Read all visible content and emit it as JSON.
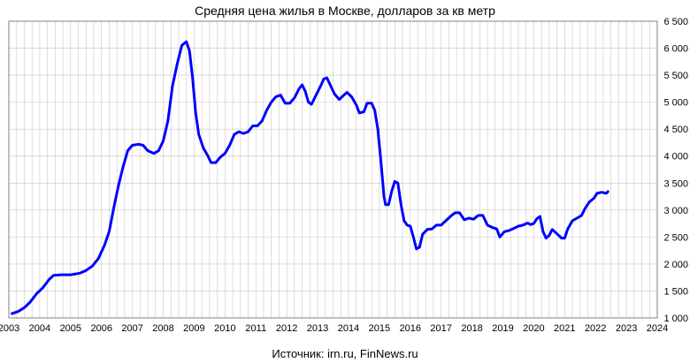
{
  "chart_data": {
    "type": "line",
    "title": "Средняя цена жилья в Москве, долларов за кв метр",
    "source": "Источник: irn.ru, FinNews.ru",
    "xlabel": "",
    "ylabel": "",
    "xlim": [
      2003,
      2024
    ],
    "ylim": [
      1000,
      6500
    ],
    "x_ticks": [
      "2003",
      "2004",
      "2005",
      "2006",
      "2007",
      "2008",
      "2009",
      "2010",
      "2011",
      "2012",
      "2013",
      "2014",
      "2015",
      "2016",
      "2017",
      "2018",
      "2019",
      "2020",
      "2021",
      "2022",
      "2023",
      "2024"
    ],
    "y_ticks": [
      "1 000",
      "1 500",
      "2 000",
      "2 500",
      "3 000",
      "3 500",
      "4 000",
      "4 500",
      "5 000",
      "5 500",
      "6 000",
      "6 500"
    ],
    "grid": true,
    "legend": "none",
    "series": [
      {
        "color": "#0000ff",
        "points": [
          [
            2003.1,
            1080
          ],
          [
            2003.3,
            1120
          ],
          [
            2003.5,
            1190
          ],
          [
            2003.7,
            1300
          ],
          [
            2003.9,
            1450
          ],
          [
            2004.1,
            1560
          ],
          [
            2004.3,
            1710
          ],
          [
            2004.45,
            1790
          ],
          [
            2004.7,
            1800
          ],
          [
            2005.0,
            1800
          ],
          [
            2005.3,
            1830
          ],
          [
            2005.5,
            1880
          ],
          [
            2005.7,
            1960
          ],
          [
            2005.9,
            2100
          ],
          [
            2006.1,
            2350
          ],
          [
            2006.25,
            2600
          ],
          [
            2006.4,
            3050
          ],
          [
            2006.55,
            3450
          ],
          [
            2006.7,
            3800
          ],
          [
            2006.85,
            4100
          ],
          [
            2007.0,
            4200
          ],
          [
            2007.2,
            4220
          ],
          [
            2007.35,
            4200
          ],
          [
            2007.5,
            4100
          ],
          [
            2007.7,
            4050
          ],
          [
            2007.85,
            4100
          ],
          [
            2008.0,
            4280
          ],
          [
            2008.15,
            4650
          ],
          [
            2008.3,
            5300
          ],
          [
            2008.45,
            5700
          ],
          [
            2008.6,
            6050
          ],
          [
            2008.75,
            6120
          ],
          [
            2008.85,
            5950
          ],
          [
            2008.95,
            5450
          ],
          [
            2009.05,
            4800
          ],
          [
            2009.15,
            4400
          ],
          [
            2009.3,
            4150
          ],
          [
            2009.45,
            4000
          ],
          [
            2009.55,
            3880
          ],
          [
            2009.7,
            3880
          ],
          [
            2009.85,
            3980
          ],
          [
            2010.0,
            4050
          ],
          [
            2010.15,
            4200
          ],
          [
            2010.3,
            4400
          ],
          [
            2010.45,
            4450
          ],
          [
            2010.6,
            4420
          ],
          [
            2010.75,
            4450
          ],
          [
            2010.9,
            4560
          ],
          [
            2011.05,
            4560
          ],
          [
            2011.2,
            4650
          ],
          [
            2011.35,
            4850
          ],
          [
            2011.5,
            5000
          ],
          [
            2011.65,
            5100
          ],
          [
            2011.8,
            5130
          ],
          [
            2011.95,
            4980
          ],
          [
            2012.1,
            4980
          ],
          [
            2012.25,
            5080
          ],
          [
            2012.4,
            5250
          ],
          [
            2012.5,
            5320
          ],
          [
            2012.6,
            5200
          ],
          [
            2012.7,
            5000
          ],
          [
            2012.8,
            4960
          ],
          [
            2012.95,
            5130
          ],
          [
            2013.1,
            5300
          ],
          [
            2013.2,
            5430
          ],
          [
            2013.3,
            5450
          ],
          [
            2013.4,
            5330
          ],
          [
            2013.55,
            5150
          ],
          [
            2013.7,
            5050
          ],
          [
            2013.85,
            5130
          ],
          [
            2013.95,
            5180
          ],
          [
            2014.1,
            5100
          ],
          [
            2014.25,
            4950
          ],
          [
            2014.35,
            4800
          ],
          [
            2014.5,
            4820
          ],
          [
            2014.6,
            4980
          ],
          [
            2014.75,
            4980
          ],
          [
            2014.85,
            4850
          ],
          [
            2014.95,
            4500
          ],
          [
            2015.05,
            3900
          ],
          [
            2015.15,
            3250
          ],
          [
            2015.2,
            3100
          ],
          [
            2015.3,
            3100
          ],
          [
            2015.4,
            3350
          ],
          [
            2015.5,
            3530
          ],
          [
            2015.6,
            3500
          ],
          [
            2015.7,
            3100
          ],
          [
            2015.8,
            2800
          ],
          [
            2015.9,
            2720
          ],
          [
            2016.0,
            2700
          ],
          [
            2016.1,
            2500
          ],
          [
            2016.2,
            2280
          ],
          [
            2016.3,
            2310
          ],
          [
            2016.4,
            2550
          ],
          [
            2016.55,
            2640
          ],
          [
            2016.7,
            2650
          ],
          [
            2016.85,
            2720
          ],
          [
            2017.0,
            2720
          ],
          [
            2017.15,
            2800
          ],
          [
            2017.3,
            2880
          ],
          [
            2017.45,
            2950
          ],
          [
            2017.6,
            2950
          ],
          [
            2017.75,
            2820
          ],
          [
            2017.9,
            2850
          ],
          [
            2018.05,
            2830
          ],
          [
            2018.2,
            2900
          ],
          [
            2018.35,
            2900
          ],
          [
            2018.5,
            2720
          ],
          [
            2018.65,
            2680
          ],
          [
            2018.8,
            2650
          ],
          [
            2018.9,
            2500
          ],
          [
            2019.05,
            2600
          ],
          [
            2019.2,
            2620
          ],
          [
            2019.35,
            2660
          ],
          [
            2019.5,
            2700
          ],
          [
            2019.65,
            2720
          ],
          [
            2019.8,
            2760
          ],
          [
            2019.9,
            2730
          ],
          [
            2020.0,
            2750
          ],
          [
            2020.1,
            2840
          ],
          [
            2020.2,
            2880
          ],
          [
            2020.3,
            2600
          ],
          [
            2020.4,
            2480
          ],
          [
            2020.5,
            2530
          ],
          [
            2020.6,
            2640
          ],
          [
            2020.75,
            2560
          ],
          [
            2020.9,
            2480
          ],
          [
            2021.0,
            2480
          ],
          [
            2021.1,
            2650
          ],
          [
            2021.25,
            2800
          ],
          [
            2021.4,
            2850
          ],
          [
            2021.55,
            2900
          ],
          [
            2021.65,
            3020
          ],
          [
            2021.8,
            3150
          ],
          [
            2021.95,
            3220
          ],
          [
            2022.05,
            3310
          ],
          [
            2022.2,
            3330
          ],
          [
            2022.35,
            3310
          ],
          [
            2022.4,
            3340
          ]
        ]
      }
    ]
  }
}
